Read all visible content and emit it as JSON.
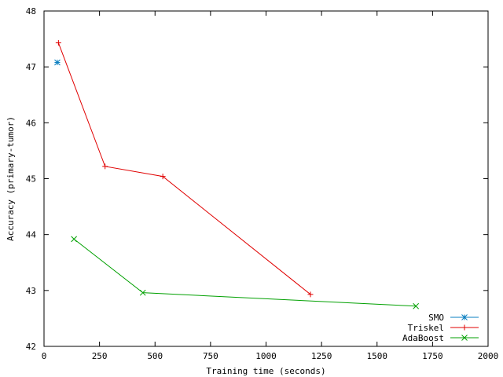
{
  "chart_data": {
    "type": "line",
    "xlabel": "Training time (seconds)",
    "ylabel": "Accuracy (primary-tumor)",
    "xlim": [
      0,
      2000
    ],
    "ylim": [
      42,
      48
    ],
    "xticks": [
      0,
      250,
      500,
      750,
      1000,
      1250,
      1500,
      1750,
      2000
    ],
    "yticks": [
      42,
      43,
      44,
      45,
      46,
      47,
      48
    ],
    "grid": false,
    "legend_position": "bottom-right",
    "series": [
      {
        "name": "SMO",
        "color": "#0a7fc0",
        "marker": "asterisk",
        "x": [
          60
        ],
        "y": [
          47.08
        ]
      },
      {
        "name": "Triskel",
        "color": "#e00000",
        "marker": "plus",
        "x": [
          65,
          275,
          535,
          1200
        ],
        "y": [
          47.43,
          45.22,
          45.04,
          42.93
        ]
      },
      {
        "name": "AdaBoost",
        "color": "#00a000",
        "marker": "cross",
        "x": [
          135,
          445,
          1675
        ],
        "y": [
          43.92,
          42.96,
          42.72
        ]
      }
    ]
  }
}
